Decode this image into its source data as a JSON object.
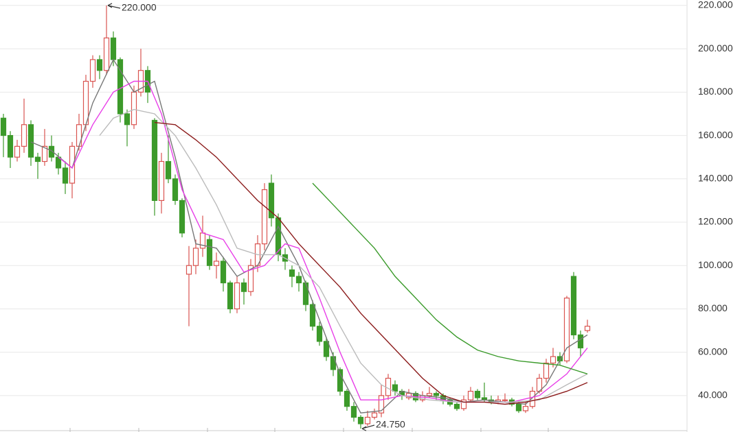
{
  "chart_data": {
    "type": "candlestick",
    "xlim": [
      -0.5,
      99.5
    ],
    "ylim": [
      23.2,
      222.5
    ],
    "yticks": [
      {
        "value": 40,
        "label": "40.000"
      },
      {
        "value": 60,
        "label": "60.000"
      },
      {
        "value": 80,
        "label": "80.000"
      },
      {
        "value": 100,
        "label": "100.000"
      },
      {
        "value": 120,
        "label": "120.000"
      },
      {
        "value": 140,
        "label": "140.000"
      },
      {
        "value": 160,
        "label": "160.000"
      },
      {
        "value": 180,
        "label": "180.000"
      },
      {
        "value": 200,
        "label": "200.000"
      },
      {
        "value": 220,
        "label": "220.000"
      }
    ],
    "grid": true,
    "up_color": "#d9534f",
    "down_color": "#3c9a2a",
    "ohlc": [
      [
        168,
        170,
        150,
        160
      ],
      [
        160,
        162,
        145,
        150
      ],
      [
        150,
        158,
        148,
        155
      ],
      [
        155,
        177,
        152,
        165
      ],
      [
        165,
        167,
        146,
        150
      ],
      [
        150,
        152,
        140,
        148
      ],
      [
        148,
        163,
        146,
        155
      ],
      [
        155,
        160,
        148,
        150
      ],
      [
        150,
        152,
        142,
        145
      ],
      [
        145,
        148,
        133,
        138
      ],
      [
        138,
        157,
        131,
        155
      ],
      [
        155,
        170,
        153,
        165
      ],
      [
        165,
        188,
        162,
        185
      ],
      [
        185,
        197,
        182,
        195
      ],
      [
        195,
        197,
        186,
        190
      ],
      [
        190,
        220,
        188,
        205
      ],
      [
        205,
        208,
        192,
        195
      ],
      [
        195,
        196,
        166,
        170
      ],
      [
        170,
        172,
        155,
        165
      ],
      [
        165,
        183,
        163,
        180
      ],
      [
        180,
        200,
        178,
        190
      ],
      [
        190,
        192,
        175,
        180
      ],
      [
        167,
        168,
        123,
        130
      ],
      [
        130,
        152,
        124,
        148
      ],
      [
        148,
        160,
        138,
        140
      ],
      [
        140,
        142,
        128,
        130
      ],
      [
        130,
        131,
        113,
        115
      ],
      [
        96,
        109,
        72,
        100
      ],
      [
        100,
        112,
        96,
        108
      ],
      [
        108,
        123,
        104,
        115
      ],
      [
        112,
        114,
        98,
        100
      ],
      [
        100,
        106,
        94,
        102
      ],
      [
        102,
        104,
        88,
        92
      ],
      [
        92,
        93,
        78,
        80
      ],
      [
        80,
        95,
        78,
        92
      ],
      [
        92,
        94,
        82,
        88
      ],
      [
        88,
        103,
        86,
        100
      ],
      [
        100,
        114,
        97,
        110
      ],
      [
        110,
        138,
        107,
        135
      ],
      [
        138,
        142,
        118,
        122
      ],
      [
        122,
        124,
        102,
        105
      ],
      [
        105,
        108,
        98,
        102
      ],
      [
        98,
        100,
        90,
        95
      ],
      [
        95,
        97,
        88,
        92
      ],
      [
        92,
        93,
        79,
        82
      ],
      [
        82,
        84,
        70,
        72
      ],
      [
        72,
        74,
        63,
        65
      ],
      [
        65,
        67,
        56,
        58
      ],
      [
        58,
        60,
        49,
        52
      ],
      [
        52,
        53,
        40,
        42
      ],
      [
        42,
        43,
        33,
        35
      ],
      [
        35,
        37,
        28,
        30
      ],
      [
        30,
        31,
        24.75,
        27
      ],
      [
        27,
        33,
        26,
        30
      ],
      [
        30,
        34,
        29,
        32
      ],
      [
        32,
        45,
        30,
        40
      ],
      [
        40,
        50,
        38,
        48
      ],
      [
        45,
        47,
        40,
        42
      ],
      [
        42,
        43,
        38,
        40
      ],
      [
        39,
        43,
        38,
        41
      ],
      [
        41,
        42,
        37,
        38
      ],
      [
        38,
        42,
        37,
        40
      ],
      [
        40,
        44,
        39,
        41
      ],
      [
        41,
        42,
        38,
        40
      ],
      [
        40,
        41,
        36,
        38
      ],
      [
        38,
        39,
        35,
        36
      ],
      [
        36,
        37,
        33,
        34
      ],
      [
        34,
        40,
        33,
        38
      ],
      [
        38,
        44,
        37,
        42
      ],
      [
        42,
        43,
        38,
        39
      ],
      [
        39,
        46,
        37,
        38
      ],
      [
        38,
        40,
        36,
        37
      ],
      [
        37,
        40,
        36,
        38
      ],
      [
        38,
        41,
        37,
        38
      ],
      [
        38,
        39,
        35,
        36
      ],
      [
        36,
        37,
        32,
        33
      ],
      [
        33,
        37,
        32,
        35
      ],
      [
        35,
        44,
        34,
        42
      ],
      [
        42,
        50,
        41,
        48
      ],
      [
        48,
        57,
        46,
        55
      ],
      [
        55,
        62,
        53,
        58
      ],
      [
        58,
        60,
        54,
        56
      ],
      [
        56,
        86,
        55,
        85
      ],
      [
        95,
        97,
        66,
        68
      ],
      [
        68,
        70,
        58,
        62
      ],
      [
        70,
        75,
        69,
        72
      ]
    ],
    "lines": [
      {
        "color": "#777777",
        "x": [
          4,
          7,
          10,
          13,
          16,
          19,
          22,
          25,
          28,
          31,
          34,
          37,
          40,
          43,
          46,
          49,
          52,
          55,
          58,
          61,
          64,
          67,
          70,
          73,
          76,
          79,
          82,
          85
        ],
        "values": [
          157,
          153,
          145,
          175,
          195,
          180,
          185,
          150,
          110,
          108,
          95,
          100,
          118,
          100,
          75,
          50,
          32,
          33,
          42,
          40,
          39,
          37,
          38,
          37,
          36,
          45,
          62,
          68
        ]
      },
      {
        "color": "#e83ee8",
        "x": [
          8,
          10,
          13,
          16,
          19,
          21,
          23,
          26,
          29,
          32,
          35,
          38,
          41,
          43,
          46,
          49,
          52,
          55,
          58,
          62,
          66,
          70,
          74,
          78,
          82,
          85
        ],
        "values": [
          150,
          145,
          165,
          180,
          185,
          185,
          170,
          135,
          115,
          112,
          97,
          100,
          110,
          108,
          85,
          60,
          38,
          38,
          40,
          39,
          37,
          37,
          37,
          40,
          50,
          62
        ]
      },
      {
        "color": "#bbbbbb",
        "x": [
          14,
          16,
          19,
          22,
          25,
          28,
          31,
          34,
          37,
          40,
          43,
          46,
          49,
          52,
          55,
          58,
          62,
          66,
          70,
          74,
          78,
          82,
          85
        ],
        "values": [
          160,
          168,
          172,
          170,
          160,
          145,
          128,
          108,
          105,
          105,
          100,
          90,
          72,
          55,
          45,
          40,
          38,
          37,
          37,
          37,
          38,
          45,
          50
        ]
      },
      {
        "color": "#8b1a1a",
        "x": [
          22,
          25,
          28,
          31,
          34,
          37,
          40,
          43,
          46,
          49,
          52,
          55,
          58,
          61,
          64,
          67,
          70,
          73,
          76,
          79,
          82,
          85
        ],
        "values": [
          166,
          165,
          158,
          150,
          140,
          130,
          122,
          110,
          100,
          90,
          78,
          68,
          58,
          48,
          40,
          37,
          37,
          36,
          37,
          39,
          42,
          46
        ]
      },
      {
        "color": "#3a9a2a",
        "x": [
          45,
          48,
          51,
          54,
          57,
          60,
          63,
          66,
          69,
          72,
          75,
          78,
          81,
          83,
          85
        ],
        "values": [
          138,
          128,
          118,
          108,
          95,
          85,
          75,
          67,
          61,
          58,
          56,
          55,
          54,
          52,
          50
        ]
      }
    ],
    "annotations": [
      {
        "label": "220.000",
        "value": 220,
        "x": 15
      },
      {
        "label": "24.750",
        "value": 24.75,
        "x": 52
      }
    ]
  }
}
